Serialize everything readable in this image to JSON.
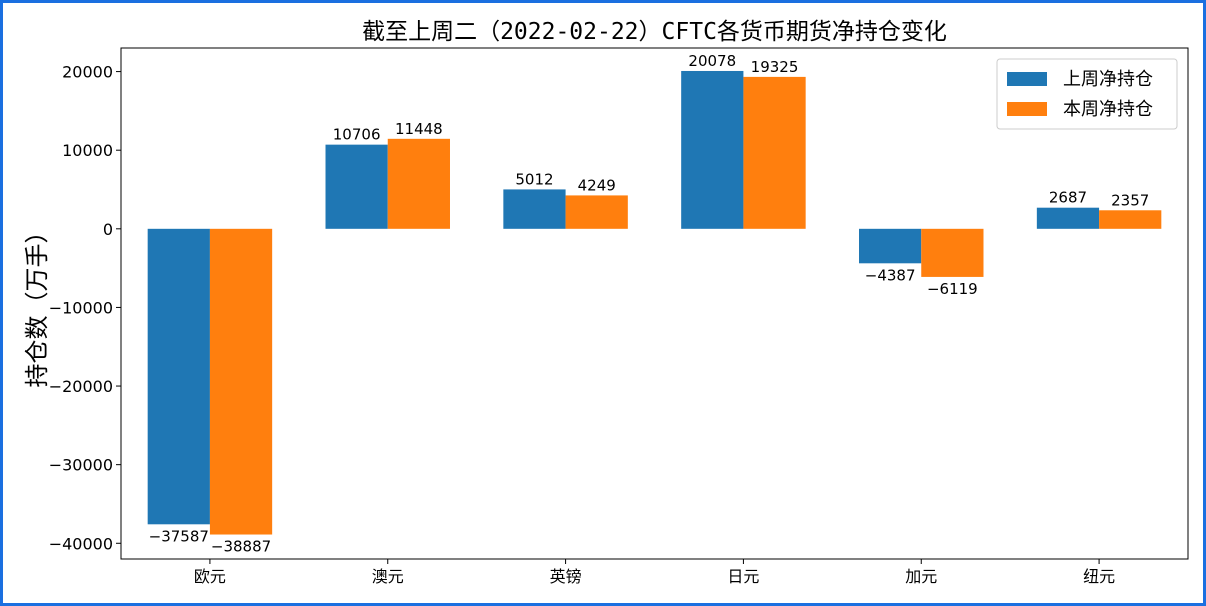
{
  "chart_data": {
    "type": "bar",
    "title": "截至上周二（2022-02-22）CFTC各货币期货净持仓变化",
    "xlabel": "",
    "ylabel": "持仓数（万手）",
    "categories": [
      "欧元",
      "澳元",
      "英镑",
      "日元",
      "加元",
      "纽元"
    ],
    "series": [
      {
        "name": "上周净持仓",
        "color": "#1f77b4",
        "values": [
          -37587,
          10706,
          5012,
          20078,
          -4387,
          2687
        ]
      },
      {
        "name": "本周净持仓",
        "color": "#ff7f0e",
        "values": [
          -38887,
          11448,
          4249,
          19325,
          -6119,
          2357
        ]
      }
    ],
    "ylim": [
      -42000,
      23000
    ],
    "yticks": [
      20000,
      10000,
      0,
      -10000,
      -20000,
      -30000,
      -40000
    ],
    "ytick_labels": [
      "20000",
      "10000",
      "0",
      "−10000",
      "−20000",
      "−30000",
      "−40000"
    ],
    "grid": false,
    "legend_position": "top-right"
  }
}
